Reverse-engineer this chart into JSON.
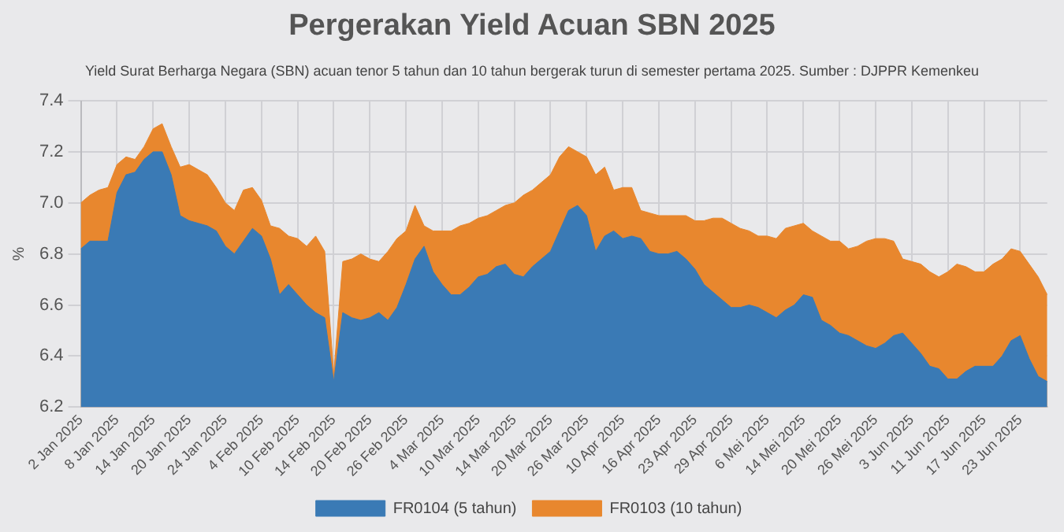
{
  "chart_data": {
    "type": "area",
    "title": "Pergerakan Yield Acuan SBN 2025",
    "subtitle": "Yield Surat Berharga Negara (SBN) acuan tenor 5 tahun dan 10 tahun bergerak turun di semester pertama 2025. Sumber : DJPPR Kemenkeu",
    "ylabel": "%",
    "categories": [
      "2 Jan 2025",
      null,
      null,
      null,
      "8 Jan 2025",
      null,
      null,
      null,
      "14 Jan 2025",
      null,
      null,
      null,
      "20 Jan 2025",
      null,
      null,
      null,
      "24 Jan 2025",
      null,
      null,
      null,
      "4 Feb 2025",
      null,
      null,
      null,
      "10 Feb 2025",
      null,
      null,
      null,
      "14 Feb 2025",
      null,
      null,
      null,
      "20 Feb 2025",
      null,
      null,
      null,
      "26 Feb 2025",
      null,
      null,
      null,
      "4 Mar 2025",
      null,
      null,
      null,
      "10 Mar 2025",
      null,
      null,
      null,
      "14 Mar 2025",
      null,
      null,
      null,
      "20 Mar 2025",
      null,
      null,
      null,
      "26 Mar 2025",
      null,
      null,
      null,
      "10 Apr 2025",
      null,
      null,
      null,
      "16 Apr 2025",
      null,
      null,
      null,
      "23 Apr 2025",
      null,
      null,
      null,
      "29 Apr 2025",
      null,
      null,
      null,
      "6 Mei 2025",
      null,
      null,
      null,
      "14 Mei 2025",
      null,
      null,
      null,
      "20 Mei 2025",
      null,
      null,
      null,
      "26 Mei 2025",
      null,
      null,
      null,
      "3 Jun 2025",
      null,
      null,
      null,
      "11 Jun 2025",
      null,
      null,
      null,
      "17 Jun 2025",
      null,
      null,
      null,
      "23 Jun 2025",
      null,
      null,
      null
    ],
    "series": [
      {
        "name": "FR0104 (5 tahun)",
        "color": "#3a7ab5",
        "values": [
          6.82,
          6.85,
          6.85,
          6.85,
          7.04,
          7.11,
          7.12,
          7.17,
          7.2,
          7.2,
          7.11,
          6.95,
          6.93,
          6.92,
          6.91,
          6.89,
          6.83,
          6.8,
          6.85,
          6.9,
          6.87,
          6.78,
          6.64,
          6.68,
          6.64,
          6.6,
          6.57,
          6.55,
          6.3,
          6.57,
          6.55,
          6.54,
          6.55,
          6.57,
          6.54,
          6.59,
          6.68,
          6.78,
          6.83,
          6.73,
          6.68,
          6.64,
          6.64,
          6.67,
          6.71,
          6.72,
          6.75,
          6.76,
          6.72,
          6.71,
          6.75,
          6.78,
          6.81,
          6.89,
          6.97,
          6.99,
          6.95,
          6.81,
          6.87,
          6.89,
          6.86,
          6.87,
          6.86,
          6.81,
          6.8,
          6.8,
          6.81,
          6.78,
          6.74,
          6.68,
          6.65,
          6.62,
          6.59,
          6.59,
          6.6,
          6.59,
          6.57,
          6.55,
          6.58,
          6.6,
          6.64,
          6.63,
          6.54,
          6.52,
          6.49,
          6.48,
          6.46,
          6.44,
          6.43,
          6.45,
          6.48,
          6.49,
          6.45,
          6.41,
          6.36,
          6.35,
          6.31,
          6.31,
          6.34,
          6.36,
          6.36,
          6.36,
          6.4,
          6.46,
          6.48,
          6.39,
          6.32,
          6.3
        ]
      },
      {
        "name": "FR0103 (10 tahun)",
        "color": "#e8872e",
        "values": [
          7.0,
          7.03,
          7.05,
          7.06,
          7.15,
          7.18,
          7.17,
          7.22,
          7.29,
          7.31,
          7.22,
          7.14,
          7.15,
          7.13,
          7.11,
          7.06,
          7.0,
          6.97,
          7.05,
          7.06,
          7.01,
          6.91,
          6.9,
          6.87,
          6.86,
          6.83,
          6.87,
          6.81,
          6.33,
          6.77,
          6.78,
          6.8,
          6.78,
          6.77,
          6.81,
          6.86,
          6.89,
          6.99,
          6.91,
          6.89,
          6.89,
          6.89,
          6.91,
          6.92,
          6.94,
          6.95,
          6.97,
          6.99,
          7.0,
          7.03,
          7.05,
          7.08,
          7.11,
          7.18,
          7.22,
          7.2,
          7.18,
          7.11,
          7.14,
          7.05,
          7.06,
          7.06,
          6.97,
          6.96,
          6.95,
          6.95,
          6.95,
          6.95,
          6.93,
          6.93,
          6.94,
          6.94,
          6.92,
          6.9,
          6.89,
          6.87,
          6.87,
          6.86,
          6.9,
          6.91,
          6.92,
          6.89,
          6.87,
          6.85,
          6.85,
          6.82,
          6.83,
          6.85,
          6.86,
          6.86,
          6.85,
          6.78,
          6.77,
          6.76,
          6.73,
          6.71,
          6.73,
          6.76,
          6.75,
          6.73,
          6.73,
          6.76,
          6.78,
          6.82,
          6.81,
          6.76,
          6.71,
          6.64
        ]
      }
    ],
    "ylim": [
      6.2,
      7.4
    ],
    "yticks": [
      6.2,
      6.4,
      6.6,
      6.8,
      {
        "value": 7,
        "label": "7.0"
      },
      7.2,
      7.4
    ],
    "grid": true,
    "legend": "bottom"
  }
}
